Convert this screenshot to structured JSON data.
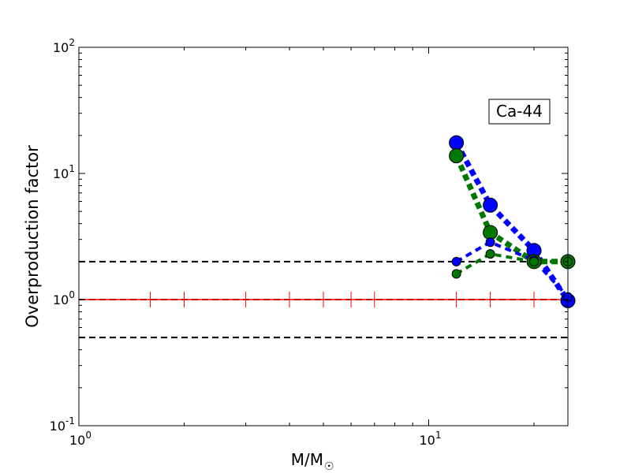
{
  "chart_data": {
    "type": "line",
    "title": "",
    "xlabel": "M/M",
    "xlabel_sub": "☉",
    "ylabel": "Overproduction factor",
    "xscale": "log",
    "yscale": "log",
    "xlim": [
      1,
      25
    ],
    "ylim": [
      0.1,
      100
    ],
    "x_ticks": [
      {
        "value": 1,
        "base": "10",
        "exp": "0"
      },
      {
        "value": 10,
        "base": "10",
        "exp": "1"
      }
    ],
    "y_ticks": [
      {
        "value": 0.1,
        "base": "10",
        "exp": "-1"
      },
      {
        "value": 1,
        "base": "10",
        "exp": "0"
      },
      {
        "value": 10,
        "base": "10",
        "exp": "1"
      },
      {
        "value": 100,
        "base": "10",
        "exp": "2"
      }
    ],
    "annotation": "Ca-44",
    "grid": false,
    "reference_lines": [
      {
        "y": 2.0,
        "color": "#000000",
        "style": "dashed"
      },
      {
        "y": 1.0,
        "color": "#000000",
        "style": "dashed"
      },
      {
        "y": 0.5,
        "color": "#000000",
        "style": "dashed"
      },
      {
        "y": 1.0,
        "color": "#ff0000",
        "style": "solid"
      }
    ],
    "red_tick_marks_x": [
      1.6,
      2,
      3,
      4,
      5,
      6,
      7,
      12,
      15,
      20,
      25
    ],
    "series": [
      {
        "color": "#0000ff",
        "style": "thick-dotted",
        "marker_size": "large",
        "x": [
          12,
          15,
          20,
          25
        ],
        "y": [
          17.5,
          5.6,
          2.45,
          0.98
        ]
      },
      {
        "color": "#007700",
        "style": "thick-dotted",
        "marker_size": "large",
        "x": [
          12,
          15,
          20,
          25
        ],
        "y": [
          13.8,
          3.4,
          2.0,
          2.0
        ]
      },
      {
        "color": "#0000ff",
        "style": "dashed",
        "marker_size": "small",
        "x": [
          12,
          15,
          20,
          25
        ],
        "y": [
          2.0,
          2.85,
          2.05,
          1.05
        ]
      },
      {
        "color": "#007700",
        "style": "dashed",
        "marker_size": "small",
        "x": [
          12,
          15,
          20,
          25
        ],
        "y": [
          1.6,
          2.3,
          2.0,
          2.0
        ]
      }
    ]
  }
}
